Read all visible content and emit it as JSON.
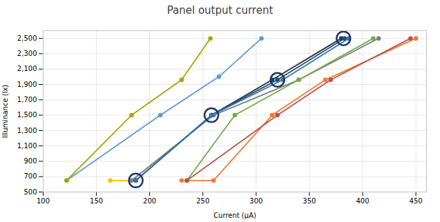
{
  "chart_data": {
    "type": "line",
    "title": "Panel output current",
    "xlabel": "Current (μA)",
    "ylabel": "Illuminance (lx)",
    "xlim": [
      100,
      460
    ],
    "ylim": [
      500,
      2600
    ],
    "xticks": [
      100,
      150,
      200,
      250,
      300,
      350,
      400,
      450
    ],
    "yticks": [
      500,
      700,
      900,
      1100,
      1300,
      1500,
      1700,
      1900,
      2100,
      2300,
      2500
    ],
    "grid": true,
    "series": [
      {
        "color": "#5b9bd5",
        "marker": "circle",
        "x": [
          122,
          210,
          265,
          305
        ],
        "values": [
          650,
          1500,
          2000,
          2500
        ]
      },
      {
        "color": "#a5a500",
        "marker": "circle",
        "x": [
          122,
          183,
          230,
          257
        ],
        "values": [
          650,
          1500,
          1960,
          2500
        ]
      },
      {
        "color": "#ffc000",
        "marker": "circle",
        "x": [
          163,
          183,
          260,
          380
        ],
        "values": [
          650,
          650,
          1500,
          2500
        ]
      },
      {
        "color": "#808080",
        "marker": "circle",
        "x": [
          183,
          260,
          340,
          415
        ],
        "values": [
          650,
          1500,
          1960,
          2500
        ]
      },
      {
        "color": "#1f3864",
        "marker": "circle",
        "x": [
          187,
          258,
          315,
          380
        ],
        "values": [
          650,
          1500,
          1960,
          2500
        ]
      },
      {
        "color": "#1f4e79",
        "marker": "circle",
        "x": [
          187,
          258,
          320,
          383
        ],
        "values": [
          650,
          1500,
          1960,
          2500
        ]
      },
      {
        "color": "#2e75b6",
        "marker": "circle",
        "x": [
          187,
          258,
          325,
          387
        ],
        "values": [
          650,
          1500,
          1960,
          2500
        ]
      },
      {
        "color": "#ed7d31",
        "marker": "circle",
        "x": [
          230,
          260,
          315,
          365,
          450
        ],
        "values": [
          650,
          650,
          1500,
          1960,
          2500
        ]
      },
      {
        "color": "#70ad47",
        "marker": "circle",
        "x": [
          235,
          280,
          340,
          410
        ],
        "values": [
          650,
          1500,
          1960,
          2500
        ]
      },
      {
        "color": "#c0504d",
        "marker": "circle",
        "x": [
          235,
          320,
          370,
          445
        ],
        "values": [
          650,
          1500,
          1960,
          2500
        ]
      },
      {
        "type": "scatter",
        "color": "#1f3864",
        "marker": "open_circle",
        "x": [
          187,
          258,
          320,
          382
        ],
        "values": [
          650,
          1500,
          1960,
          2500
        ]
      }
    ]
  }
}
